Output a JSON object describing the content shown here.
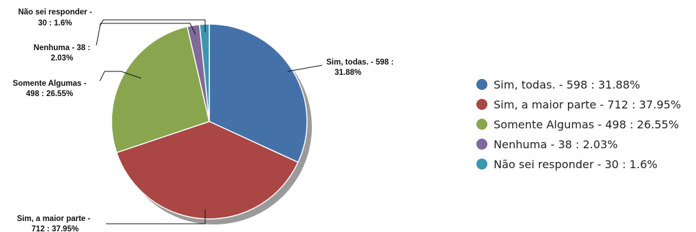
{
  "chart_data": {
    "type": "pie",
    "title": "",
    "start_angle_deg": 0,
    "direction": "clockwise",
    "shadow": true,
    "legend_position": "right",
    "slices": [
      {
        "name": "Sim, todas.",
        "value": 598,
        "percent": 31.88,
        "color": "#4472a8",
        "callout_lines": [
          "Sim, todas. - 598 :",
          "31.88%"
        ],
        "legend": "Sim, todas. - 598 : 31.88%"
      },
      {
        "name": "Sim, a maior parte",
        "value": 712,
        "percent": 37.95,
        "color": "#aa4643",
        "callout_lines": [
          "Sim, a maior parte -",
          "712 : 37.95%"
        ],
        "legend": "Sim, a maior parte - 712 : 37.95%"
      },
      {
        "name": "Somente Algumas",
        "value": 498,
        "percent": 26.55,
        "color": "#89a54e",
        "callout_lines": [
          "Somente Algumas -",
          "498 : 26.55%"
        ],
        "legend": "Somente Algumas - 498 : 26.55%"
      },
      {
        "name": "Nenhuma",
        "value": 38,
        "percent": 2.03,
        "color": "#80699b",
        "callout_lines": [
          "Nenhuma - 38 :",
          "2.03%"
        ],
        "legend": "Nenhuma - 38 : 2.03%"
      },
      {
        "name": "Não sei responder",
        "value": 30,
        "percent": 1.6,
        "color": "#3d96ae",
        "callout_lines": [
          "Não sei responder -",
          "30 : 1.6%"
        ],
        "legend": "Não sei responder - 30 : 1.6%"
      }
    ]
  }
}
